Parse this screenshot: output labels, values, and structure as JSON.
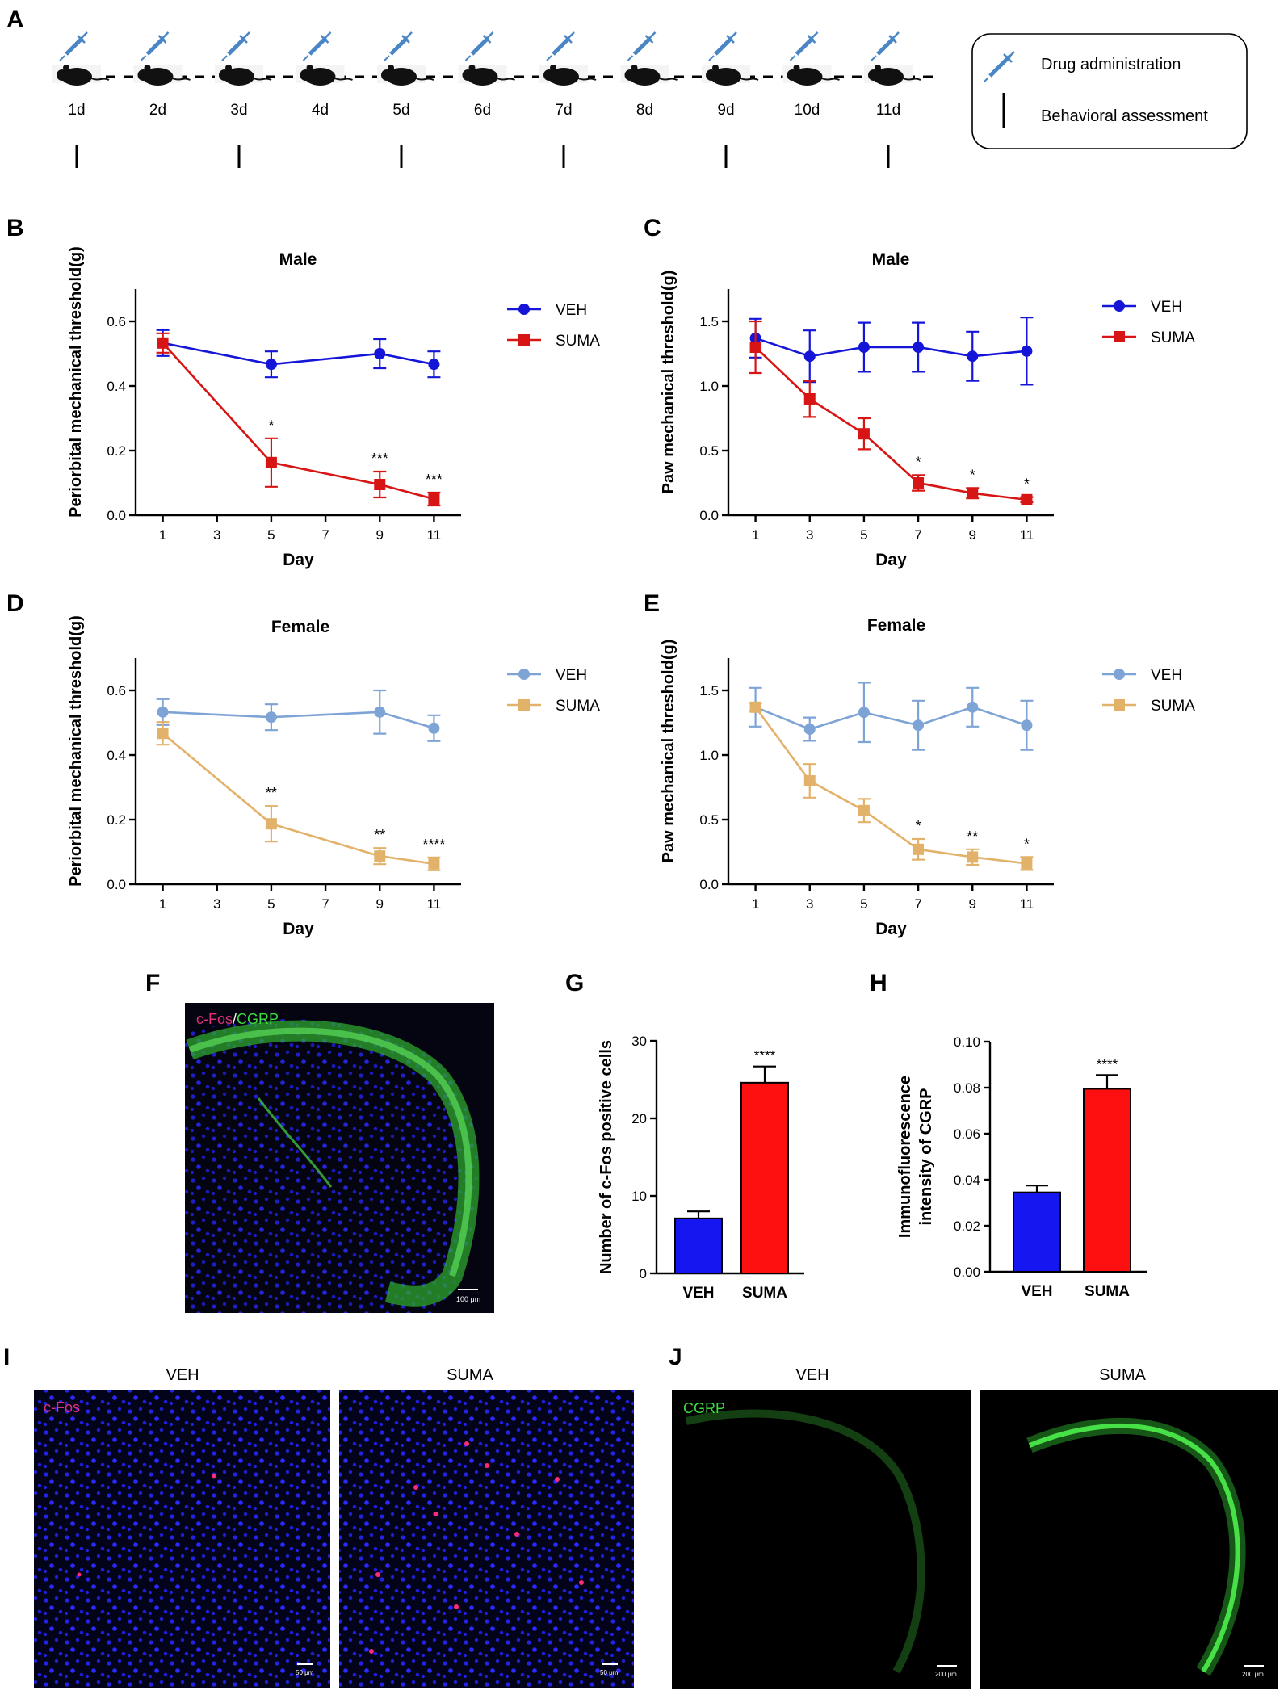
{
  "panels": {
    "A": "A",
    "B": "B",
    "C": "C",
    "D": "D",
    "E": "E",
    "F": "F",
    "G": "G",
    "H": "H",
    "I": "I",
    "J": "J"
  },
  "timeline": {
    "days": [
      "1d",
      "2d",
      "3d",
      "4d",
      "5d",
      "6d",
      "7d",
      "8d",
      "9d",
      "10d",
      "11d"
    ],
    "assessment_days": [
      "1d",
      "3d",
      "5d",
      "7d",
      "9d",
      "11d"
    ],
    "legend": {
      "drug": "Drug administration",
      "behavior": "Behavioral assessment",
      "drug_icon": "syringe-icon",
      "behavior_icon": "tick-mark-icon",
      "animal_icon": "mouse-icon"
    },
    "colors": {
      "syringe": "#4a86c5",
      "mouse": "#111111"
    }
  },
  "micrographs": {
    "F": {
      "label_a": "c-Fos",
      "label_sep": "/",
      "label_b": "CGRP",
      "scale": "100 μm"
    },
    "I": {
      "label": "c-Fos",
      "veh_title": "VEH",
      "suma_title": "SUMA",
      "scale": "50 μm"
    },
    "J": {
      "label": "CGRP",
      "veh_title": "VEH",
      "suma_title": "SUMA",
      "scale": "200 μm"
    }
  },
  "chart_data": [
    {
      "id": "B",
      "type": "line",
      "title": "Male",
      "xlabel": "Day",
      "ylabel": "Periorbital mechanical threshold(g)",
      "xlim": [
        0,
        12
      ],
      "xticks": [
        1,
        3,
        5,
        7,
        9,
        11
      ],
      "ylim": [
        0,
        0.7
      ],
      "yticks": [
        "0.0",
        "0.2",
        "0.4",
        "0.6"
      ],
      "legend_position": "top-right",
      "series": [
        {
          "name": "VEH",
          "color": "#1515d8",
          "marker": "circle",
          "x": [
            1,
            5,
            9,
            11
          ],
          "y": [
            0.533,
            0.467,
            0.5,
            0.467
          ],
          "err": [
            0.04,
            0.04,
            0.045,
            0.04
          ]
        },
        {
          "name": "SUMA",
          "color": "#d81515",
          "marker": "square",
          "x": [
            1,
            5,
            9,
            11
          ],
          "y": [
            0.533,
            0.163,
            0.095,
            0.05
          ],
          "err": [
            0.03,
            0.075,
            0.04,
            0.02
          ],
          "stars": [
            "",
            "*",
            "***",
            "***"
          ]
        }
      ]
    },
    {
      "id": "C",
      "type": "line",
      "title": "Male",
      "xlabel": "Day",
      "ylabel": "Paw mechanical threshold(g)",
      "xlim": [
        0,
        12
      ],
      "xticks": [
        1,
        3,
        5,
        7,
        9,
        11
      ],
      "ylim": [
        0,
        1.75
      ],
      "yticks": [
        "0.0",
        "0.5",
        "1.0",
        "1.5"
      ],
      "legend_position": "top-right",
      "series": [
        {
          "name": "VEH",
          "color": "#1515d8",
          "marker": "circle",
          "x": [
            1,
            3,
            5,
            7,
            9,
            11
          ],
          "y": [
            1.37,
            1.23,
            1.3,
            1.3,
            1.23,
            1.27
          ],
          "err": [
            0.15,
            0.2,
            0.19,
            0.19,
            0.19,
            0.26
          ]
        },
        {
          "name": "SUMA",
          "color": "#d81515",
          "marker": "square",
          "x": [
            1,
            3,
            5,
            7,
            9,
            11
          ],
          "y": [
            1.3,
            0.9,
            0.63,
            0.25,
            0.17,
            0.12
          ],
          "err": [
            0.2,
            0.14,
            0.12,
            0.06,
            0.04,
            0.02
          ],
          "stars": [
            "",
            "",
            "",
            "*",
            "*",
            "*"
          ]
        }
      ]
    },
    {
      "id": "D",
      "type": "line",
      "title": "Female",
      "xlabel": "Day",
      "ylabel": "Periorbital mechanical threshold(g)",
      "xlim": [
        0,
        12
      ],
      "xticks": [
        1,
        3,
        5,
        7,
        9,
        11
      ],
      "ylim": [
        0,
        0.7
      ],
      "yticks": [
        "0.0",
        "0.2",
        "0.4",
        "0.6"
      ],
      "legend_position": "top-right",
      "series": [
        {
          "name": "VEH",
          "color": "#7ea3d5",
          "marker": "circle",
          "x": [
            1,
            5,
            9,
            11
          ],
          "y": [
            0.533,
            0.517,
            0.533,
            0.483
          ],
          "err": [
            0.04,
            0.04,
            0.067,
            0.04
          ]
        },
        {
          "name": "SUMA",
          "color": "#e2b26a",
          "marker": "square",
          "x": [
            1,
            5,
            9,
            11
          ],
          "y": [
            0.467,
            0.187,
            0.087,
            0.063
          ],
          "err": [
            0.035,
            0.055,
            0.025,
            0.02
          ],
          "stars": [
            "",
            "**",
            "**",
            "****"
          ]
        }
      ]
    },
    {
      "id": "E",
      "type": "line",
      "title": "Female",
      "xlabel": "Day",
      "ylabel": "Paw mechanical threshold(g)",
      "xlim": [
        0,
        12
      ],
      "xticks": [
        1,
        3,
        5,
        7,
        9,
        11
      ],
      "ylim": [
        0,
        1.75
      ],
      "yticks": [
        "0.0",
        "0.5",
        "1.0",
        "1.5"
      ],
      "legend_position": "top-right",
      "series": [
        {
          "name": "VEH",
          "color": "#7ea3d5",
          "marker": "circle",
          "x": [
            1,
            3,
            5,
            7,
            9,
            11
          ],
          "y": [
            1.37,
            1.2,
            1.33,
            1.23,
            1.37,
            1.23
          ],
          "err": [
            0.15,
            0.09,
            0.23,
            0.19,
            0.15,
            0.19
          ]
        },
        {
          "name": "SUMA",
          "color": "#e2b26a",
          "marker": "square",
          "x": [
            1,
            3,
            5,
            7,
            9,
            11
          ],
          "y": [
            1.37,
            0.8,
            0.57,
            0.27,
            0.21,
            0.16
          ],
          "err": [
            0.03,
            0.13,
            0.09,
            0.08,
            0.06,
            0.05
          ],
          "stars": [
            "",
            "",
            "",
            "*",
            "**",
            "*"
          ]
        }
      ]
    },
    {
      "id": "G",
      "type": "bar",
      "ylabel": "Number of c-Fos positive cells",
      "categories": [
        "VEH",
        "SUMA"
      ],
      "values": [
        7.1,
        24.6
      ],
      "err": [
        0.9,
        2.1
      ],
      "colors": [
        "#1616f0",
        "#ff1010"
      ],
      "ylim": [
        0,
        30
      ],
      "yticks": [
        "0",
        "10",
        "20",
        "30"
      ],
      "stars": [
        "",
        "****"
      ]
    },
    {
      "id": "H",
      "type": "bar",
      "ylabel_line1": "Immunofluorescence",
      "ylabel_line2": "intensity of CGRP",
      "categories": [
        "VEH",
        "SUMA"
      ],
      "values": [
        0.0345,
        0.0795
      ],
      "err": [
        0.003,
        0.006
      ],
      "colors": [
        "#1616f0",
        "#ff1010"
      ],
      "ylim": [
        0,
        0.1
      ],
      "yticks": [
        "0.00",
        "0.02",
        "0.04",
        "0.06",
        "0.08",
        "0.10"
      ],
      "stars": [
        "",
        "****"
      ]
    }
  ]
}
